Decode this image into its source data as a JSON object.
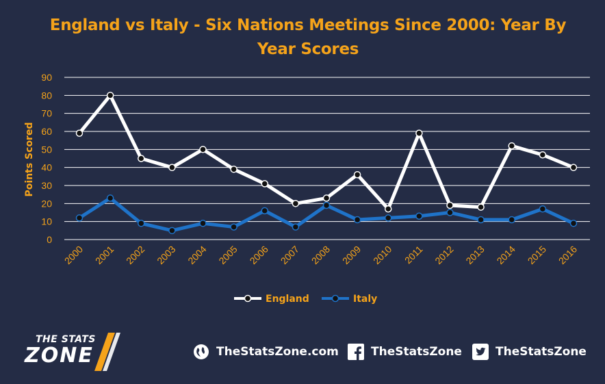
{
  "title": "England vs Italy - Six Nations Meetings Since 2000: Year By Year Scores",
  "chart_data": {
    "type": "line",
    "title": "England vs Italy - Six Nations Meetings Since 2000: Year By Year Scores",
    "xlabel": "",
    "ylabel": "Points Scored",
    "x": [
      "2000",
      "2001",
      "2002",
      "2003",
      "2004",
      "2005",
      "2006",
      "2007",
      "2008",
      "2009",
      "2010",
      "2011",
      "2012",
      "2013",
      "2014",
      "2015",
      "2016"
    ],
    "yticks": [
      "0",
      "10",
      "20",
      "30",
      "40",
      "50",
      "60",
      "70",
      "80",
      "90"
    ],
    "ylim": [
      0,
      90
    ],
    "grid": true,
    "legend_position": "bottom",
    "series": [
      {
        "name": "England",
        "color": "#ffffff",
        "values": [
          59,
          80,
          45,
          40,
          50,
          39,
          31,
          20,
          23,
          36,
          17,
          59,
          19,
          18,
          52,
          47,
          40
        ]
      },
      {
        "name": "Italy",
        "color": "#1f73c9",
        "values": [
          12,
          23,
          9,
          5,
          9,
          7,
          16,
          7,
          19,
          11,
          12,
          13,
          15,
          11,
          11,
          17,
          9
        ]
      }
    ]
  },
  "footer": {
    "logo_line1": "THE STATS",
    "logo_line2": "ZONE",
    "website": "TheStatsZone.com",
    "facebook": "TheStatsZone",
    "twitter": "TheStatsZone",
    "icons": [
      "globe-icon",
      "facebook-icon",
      "twitter-icon"
    ]
  }
}
